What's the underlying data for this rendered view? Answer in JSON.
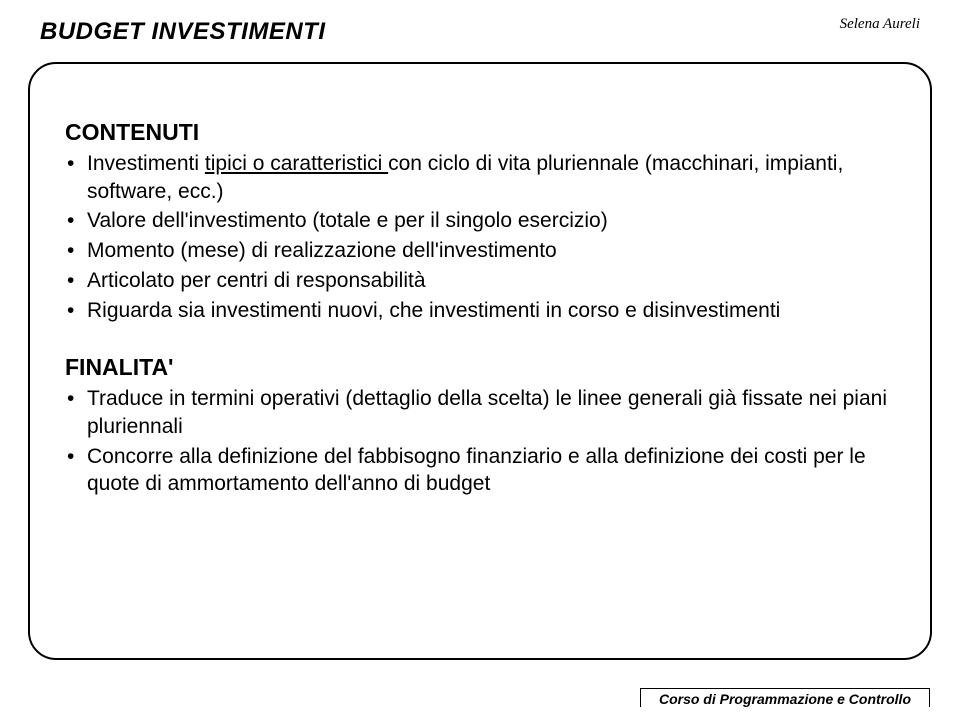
{
  "title": "BUDGET INVESTIMENTI",
  "author": "Selena Aureli",
  "footer": "Corso di Programmazione e Controllo",
  "sections": [
    {
      "heading": "CONTENUTI",
      "bullets": [
        {
          "parts": [
            {
              "text": "Investimenti "
            },
            {
              "text": "tipici o caratteristici ",
              "underline": true
            },
            {
              "text": "con ciclo di vita pluriennale (macchinari, impianti, software, ecc.)"
            }
          ]
        },
        {
          "parts": [
            {
              "text": "Valore dell'investimento (totale e per il singolo esercizio)"
            }
          ]
        },
        {
          "parts": [
            {
              "text": "Momento (mese) di realizzazione dell'investimento"
            }
          ]
        },
        {
          "parts": [
            {
              "text": "Articolato per centri di responsabilità"
            }
          ]
        },
        {
          "parts": [
            {
              "text": "Riguarda sia investimenti nuovi, che investimenti in corso e disinvestimenti"
            }
          ]
        }
      ]
    },
    {
      "heading": "FINALITA'",
      "bullets": [
        {
          "parts": [
            {
              "text": "Traduce in termini operativi (dettaglio della scelta) le linee generali già fissate nei piani pluriennali"
            }
          ]
        },
        {
          "parts": [
            {
              "text": "Concorre alla definizione del fabbisogno finanziario e alla definizione dei costi per le quote di ammortamento dell'anno di budget"
            }
          ]
        }
      ]
    }
  ]
}
